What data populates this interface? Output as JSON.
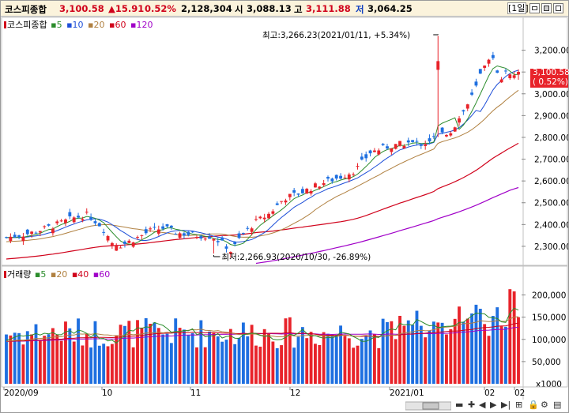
{
  "header": {
    "name": "코스피종합",
    "close": "3,100.58",
    "change": "▲15.91",
    "change_pct": "0.52%",
    "volume": "2,128,304",
    "open_label": "시",
    "open": "3,088.13",
    "high_label": "고",
    "high": "3,111.88",
    "low_label": "저",
    "low": "3,064.25",
    "period_button": "[1일]"
  },
  "price_legend": {
    "name": "코스피종합",
    "items": [
      {
        "label": "5",
        "color": "#2b8c2b"
      },
      {
        "label": "10",
        "color": "#1e4fd8"
      },
      {
        "label": "20",
        "color": "#b08040"
      },
      {
        "label": "60",
        "color": "#d0021b"
      },
      {
        "label": "120",
        "color": "#a000c8"
      }
    ]
  },
  "volume_legend": {
    "name": "거래량",
    "items": [
      {
        "label": "5",
        "color": "#2b8c2b"
      },
      {
        "label": "20",
        "color": "#b08040"
      },
      {
        "label": "40",
        "color": "#d0021b"
      },
      {
        "label": "60",
        "color": "#a000c8"
      }
    ]
  },
  "annotations": {
    "high": "최고:3,266.23(2021/01/11, +5.34%)",
    "low": "최저:2,266.93(2020/10/30, -26.89%)"
  },
  "last_price_box": {
    "price": "3,100.58",
    "pct": "( 0.52%)"
  },
  "price_axis": [
    "3,200.00",
    "3,100.00",
    "3,000.00",
    "2,900.00",
    "2,800.00",
    "2,700.00",
    "2,600.00",
    "2,500.00",
    "2,400.00",
    "2,300.00"
  ],
  "volume_axis": [
    "200,000",
    "150,000",
    "100,000",
    "50,000",
    "x1000"
  ],
  "date_axis": [
    "2020/09",
    "10",
    "11",
    "12",
    "2021/01",
    "02",
    "02"
  ],
  "colors": {
    "up": "#e8232a",
    "down": "#1e6fe0",
    "ma5": "#2b8c2b",
    "ma10": "#1e4fd8",
    "ma20": "#b08040",
    "ma60": "#d0021b",
    "ma120": "#a000c8"
  },
  "chart_data": {
    "type": "candlestick",
    "dates": [
      "2020/09",
      "",
      "",
      "",
      "",
      "",
      "",
      "",
      "",
      "",
      "",
      "",
      "",
      "",
      "",
      "",
      "",
      "",
      "",
      "",
      "",
      "10",
      "",
      "",
      "",
      "",
      "",
      "",
      "",
      "",
      "",
      "",
      "",
      "",
      "",
      "",
      "",
      "",
      "",
      "",
      "",
      "",
      "11",
      "",
      "",
      "",
      "",
      "",
      "",
      "",
      "",
      "",
      "",
      "",
      "",
      "",
      "",
      "",
      "",
      "",
      "",
      "",
      "",
      "12",
      "",
      "",
      "",
      "",
      "",
      "",
      "",
      "",
      "",
      "",
      "",
      "",
      "",
      "",
      "",
      "",
      "",
      "",
      "",
      "",
      "2021/01",
      "",
      "",
      "",
      "",
      "",
      "",
      "",
      "",
      "",
      "",
      "",
      "",
      "",
      "",
      "",
      "",
      "",
      "",
      "",
      "02",
      "",
      "",
      "",
      "",
      "",
      "",
      ""
    ],
    "price_ylim": [
      2220,
      3300
    ],
    "volume_ylim": [
      0,
      240000
    ],
    "volume_unit": "x1000",
    "annotations": [
      {
        "label": "최고",
        "value": 3266.23,
        "date": "2021/01/11",
        "pct": 5.34
      },
      {
        "label": "최저",
        "value": 2266.93,
        "date": "2020/10/30",
        "pct": -26.89
      }
    ],
    "last_close": 3100.58
  }
}
